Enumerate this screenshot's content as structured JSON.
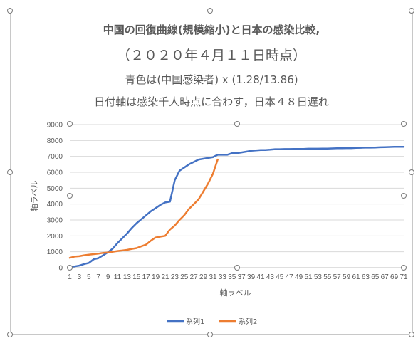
{
  "chart_data": {
    "type": "line",
    "title_lines": [
      "中国の回復曲線(規模縮小)と日本の感染比較,",
      "（２０２０年４月１１日時点）",
      "青色は(中国感染者) x (1.28/13.86)",
      "日付軸は感染千人時点に合わす，日本４８日遅れ"
    ],
    "xlabel": "軸ラベル",
    "ylabel": "軸ラベル",
    "ylim": [
      0,
      9000
    ],
    "yticks": [
      0,
      1000,
      2000,
      3000,
      4000,
      5000,
      6000,
      7000,
      8000,
      9000
    ],
    "x": [
      1,
      71
    ],
    "xtick_labels": [
      "1",
      "3",
      "5",
      "7",
      "9",
      "11",
      "13",
      "15",
      "17",
      "19",
      "21",
      "23",
      "25",
      "27",
      "29",
      "31",
      "33",
      "35",
      "37",
      "39",
      "41",
      "43",
      "45",
      "47",
      "49",
      "51",
      "53",
      "55",
      "57",
      "59",
      "61",
      "63",
      "65",
      "67",
      "69",
      "71"
    ],
    "grid": "horizontal",
    "legend_position": "bottom",
    "series": [
      {
        "name": "系列1",
        "color": "#4472c4",
        "x": [
          1,
          2,
          3,
          4,
          5,
          6,
          7,
          8,
          9,
          10,
          11,
          12,
          13,
          14,
          15,
          16,
          17,
          18,
          19,
          20,
          21,
          22,
          23,
          24,
          25,
          26,
          27,
          28,
          29,
          30,
          31,
          32,
          33,
          34,
          35,
          36,
          37,
          38,
          39,
          40,
          41,
          42,
          43,
          44,
          45,
          46,
          47,
          48,
          49,
          50,
          51,
          52,
          53,
          54,
          55,
          56,
          57,
          58,
          59,
          60,
          61,
          62,
          63,
          64,
          65,
          66,
          67,
          68,
          69,
          70,
          71
        ],
        "values": [
          50,
          80,
          130,
          230,
          300,
          530,
          600,
          780,
          970,
          1200,
          1550,
          1850,
          2150,
          2500,
          2800,
          3050,
          3300,
          3550,
          3750,
          3950,
          4100,
          4150,
          5500,
          6100,
          6300,
          6500,
          6650,
          6800,
          6850,
          6900,
          6950,
          7100,
          7100,
          7100,
          7200,
          7200,
          7250,
          7300,
          7350,
          7380,
          7400,
          7400,
          7420,
          7450,
          7450,
          7460,
          7460,
          7470,
          7470,
          7470,
          7480,
          7480,
          7480,
          7490,
          7490,
          7500,
          7510,
          7510,
          7520,
          7520,
          7530,
          7540,
          7550,
          7550,
          7560,
          7570,
          7580,
          7590,
          7600,
          7600,
          7600
        ]
      },
      {
        "name": "系列2",
        "color": "#ed7d31",
        "x": [
          1,
          2,
          3,
          4,
          5,
          6,
          7,
          8,
          9,
          10,
          11,
          12,
          13,
          14,
          15,
          16,
          17,
          18,
          19,
          20,
          21,
          22,
          23,
          24,
          25,
          26,
          27,
          28,
          29,
          30,
          31,
          32
        ],
        "values": [
          620,
          700,
          720,
          780,
          820,
          850,
          880,
          930,
          950,
          1000,
          1050,
          1080,
          1120,
          1180,
          1230,
          1350,
          1450,
          1700,
          1900,
          1950,
          2000,
          2400,
          2650,
          3000,
          3300,
          3700,
          4000,
          4300,
          4800,
          5300,
          5900,
          6800
        ]
      }
    ]
  }
}
